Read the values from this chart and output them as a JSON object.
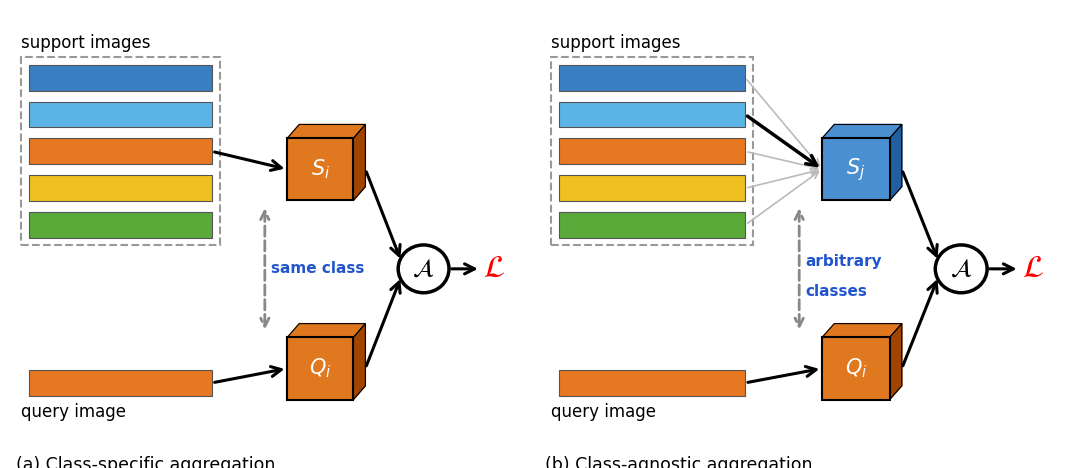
{
  "bg_color": "#ffffff",
  "bar_colors": [
    "#3a7fc1",
    "#5ab4e5",
    "#e87722",
    "#f0c020",
    "#5aaa3a"
  ],
  "orange_color": "#e07820",
  "orange_dark": "#a04400",
  "blue_color": "#4a90d0",
  "blue_dark": "#2060a0",
  "panel_a_title": "support images",
  "panel_b_title": "support images",
  "query_label_a": "query image",
  "query_label_b": "query image",
  "caption_a": "(a) Class-specific aggregation",
  "caption_b": "(b) Class-agnostic aggregation",
  "same_class_label": "same class",
  "arbitrary_label1": "arbitrary",
  "arbitrary_label2": "classes",
  "Si_label": "$S_i$",
  "Sj_label": "$S_j$",
  "Qi_label": "$Q_i$",
  "A_label": "$\\mathcal{A}$",
  "L_label": "$\\mathcal{L}$"
}
